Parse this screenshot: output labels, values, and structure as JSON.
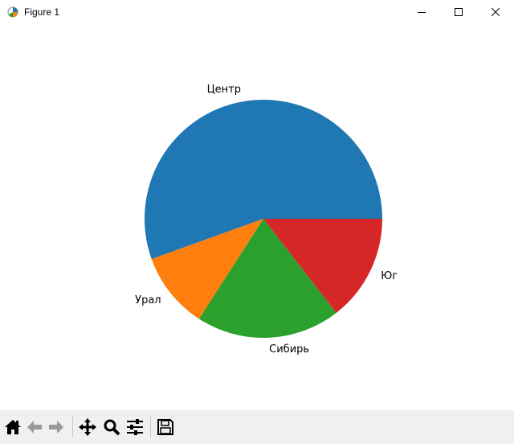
{
  "window": {
    "title": "Figure 1"
  },
  "chart_data": {
    "type": "pie",
    "labels": [
      "Центр",
      "Урал",
      "Сибирь",
      "Юг"
    ],
    "values": [
      55.5,
      10.4,
      19.6,
      14.5
    ],
    "colors": [
      "#1f77b4",
      "#ff7f0e",
      "#2ca02c",
      "#d62728"
    ],
    "start_angle": 0,
    "direction": "counterclockwise"
  },
  "toolbar": {
    "icons": [
      "home-icon",
      "back-icon",
      "forward-icon",
      "pan-icon",
      "zoom-icon",
      "configure-subplots-icon",
      "save-icon"
    ]
  }
}
